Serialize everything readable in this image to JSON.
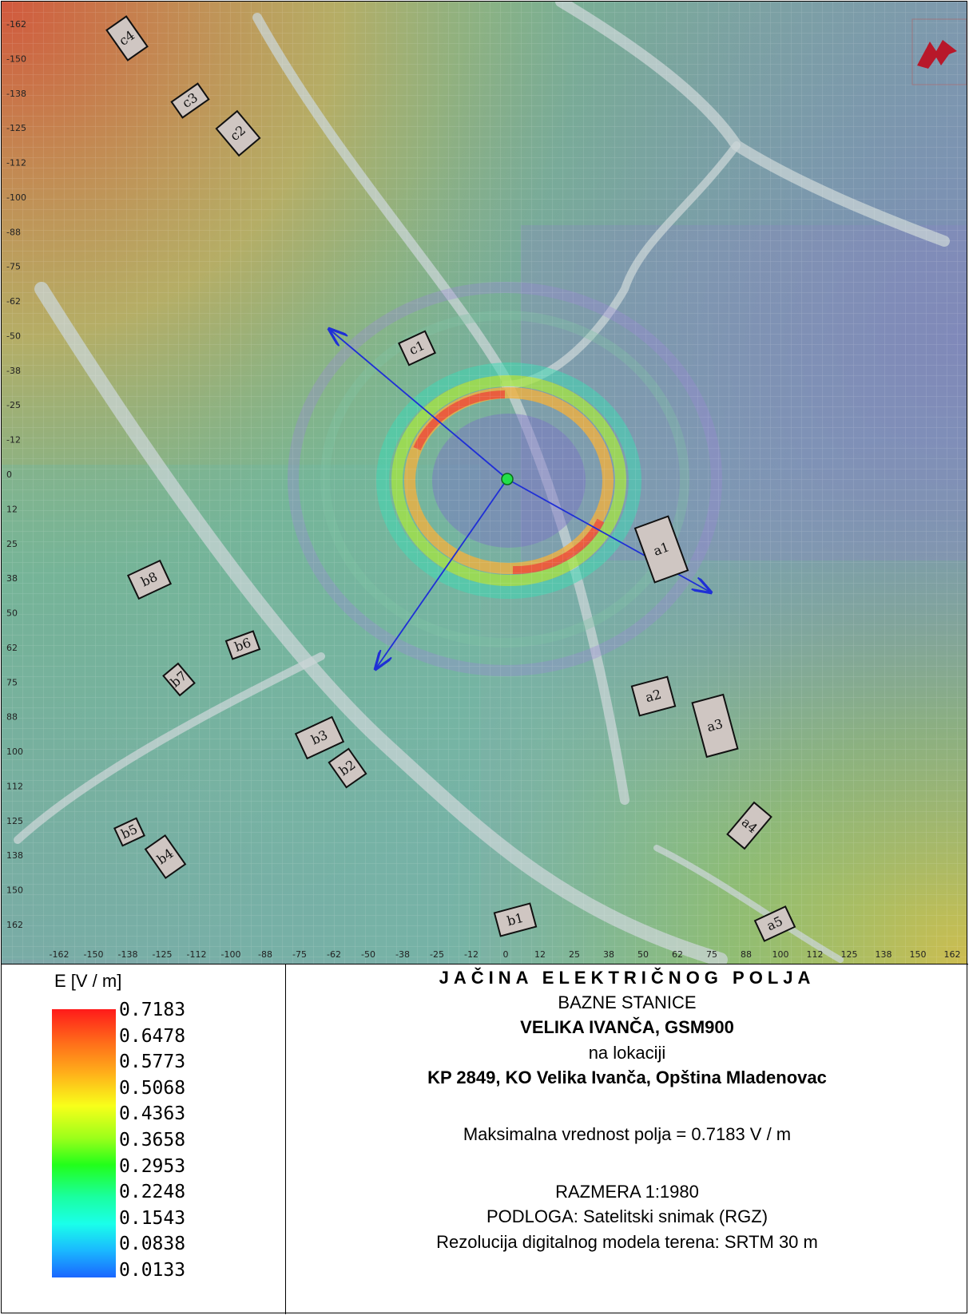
{
  "map": {
    "y_ticks": [
      "-162",
      "-150",
      "-138",
      "-125",
      "-112",
      "-100",
      "-88",
      "-75",
      "-62",
      "-50",
      "-38",
      "-25",
      "-12",
      "0",
      "12",
      "25",
      "38",
      "50",
      "62",
      "75",
      "88",
      "100",
      "112",
      "125",
      "138",
      "150",
      "162"
    ],
    "x_ticks": [
      "-162",
      "-150",
      "-138",
      "-125",
      "-112",
      "-100",
      "-88",
      "-75",
      "-62",
      "-50",
      "-38",
      "-25",
      "-12",
      "0",
      "12",
      "25",
      "38",
      "50",
      "62",
      "75",
      "88",
      "100",
      "112",
      "125",
      "138",
      "150",
      "162"
    ],
    "buildings": [
      "c4",
      "c3",
      "c2",
      "c1",
      "a1",
      "a2",
      "a3",
      "a4",
      "a5",
      "b1",
      "b2",
      "b3",
      "b4",
      "b5",
      "b6",
      "b7",
      "b8"
    ],
    "logo_icon": "ap-logo-icon",
    "antenna_icon": "antenna-site-icon"
  },
  "legend": {
    "title": "E [V / m]",
    "values": [
      "0.7183",
      "0.6478",
      "0.5773",
      "0.5068",
      "0.4363",
      "0.3658",
      "0.2953",
      "0.2248",
      "0.1543",
      "0.0838",
      "0.0133"
    ]
  },
  "info": {
    "title": "JAČINA ELEKTRIČNOG POLJA",
    "line2": "BAZNE STANICE",
    "station": "VELIKA IVANČA, GSM900",
    "line4": "na lokaciji",
    "location": "KP 2849, KO Velika Ivanča, Opština Mladenovac",
    "max_value": "Maksimalna vrednost polja = 0.7183 V / m",
    "scale": "RAZMERA 1:1980",
    "basemap": "PODLOGA: Satelitski snimak (RGZ)",
    "dem": "Rezolucija digitalnog modela terena: SRTM 30 m"
  }
}
